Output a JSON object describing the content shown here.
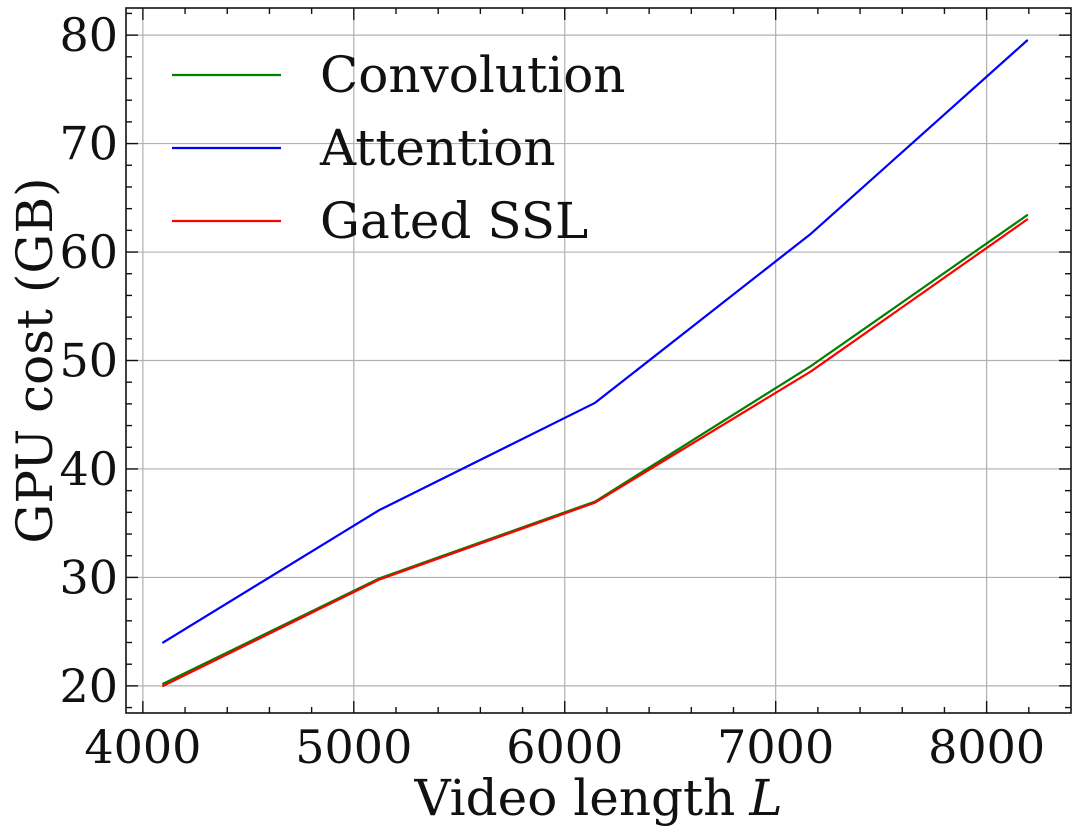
{
  "chart_data": {
    "type": "line",
    "xlabel": "Video length",
    "xlabel_var": "L",
    "ylabel": "GPU cost (GB)",
    "xlim": [
      3920,
      8400
    ],
    "ylim": [
      17.5,
      82.5
    ],
    "xticks": [
      4000,
      5000,
      6000,
      7000,
      8000
    ],
    "yticks": [
      20,
      30,
      40,
      50,
      60,
      70,
      80
    ],
    "x_minor_ticks": [
      4200,
      4400,
      4600,
      4800,
      5200,
      5400,
      5600,
      5800,
      6200,
      6400,
      6600,
      6800,
      7200,
      7400,
      7600,
      7800,
      8200
    ],
    "y_minor_ticks": [
      18,
      22,
      24,
      26,
      28,
      32,
      34,
      36,
      38,
      42,
      44,
      46,
      48,
      52,
      54,
      56,
      58,
      62,
      64,
      66,
      68,
      72,
      74,
      76,
      78,
      82
    ],
    "grid": true,
    "legend_position": "top-left",
    "x": [
      4096,
      5120,
      6144,
      7168,
      8192
    ],
    "series": [
      {
        "name": "Convolution",
        "color": "#008000",
        "values": [
          20.2,
          29.9,
          37.0,
          49.5,
          63.4
        ]
      },
      {
        "name": "Attention",
        "color": "#0000ff",
        "values": [
          24.0,
          36.2,
          46.1,
          61.7,
          79.5
        ]
      },
      {
        "name": "Gated SSL",
        "color": "#ff0000",
        "values": [
          20.0,
          29.8,
          36.9,
          49.0,
          63.0
        ]
      }
    ]
  }
}
